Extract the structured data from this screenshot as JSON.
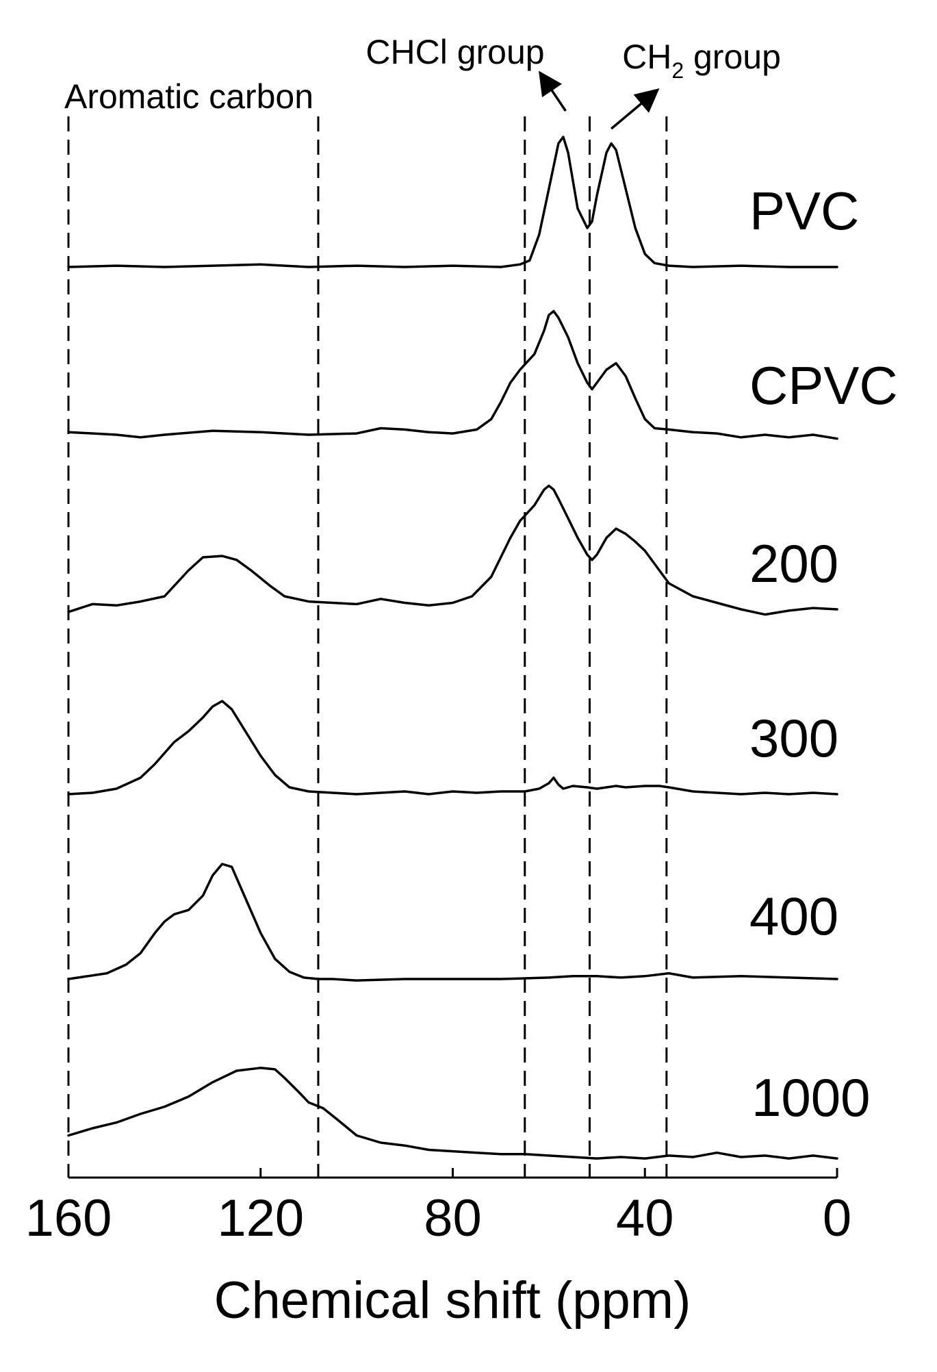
{
  "chart_data": {
    "type": "line",
    "xlabel": "Chemical shift (ppm)",
    "xlim": [
      160,
      0
    ],
    "x_reversed": true,
    "xticks": [
      160,
      120,
      80,
      40,
      0
    ],
    "grid": false,
    "legend": "none",
    "guide_lines": [
      160,
      108,
      65,
      51.5,
      35.5
    ],
    "annotations": [
      {
        "text": "Aromatic carbon",
        "x": 134
      },
      {
        "text": "CHCl group",
        "x": 58,
        "arrow_from": 56.5,
        "arrow_to": 61
      },
      {
        "text": "CH2 group",
        "main": "CH",
        "sub": "2",
        "tail": " group",
        "x": 45,
        "arrow_from": 47,
        "arrow_to": 38.5
      }
    ],
    "series": [
      {
        "name": "PVC",
        "x": [
          160,
          150,
          140,
          130,
          120,
          110,
          100,
          90,
          80,
          70,
          66,
          64,
          62,
          60,
          58,
          57,
          56,
          54,
          52,
          51,
          50,
          48,
          47,
          46,
          44,
          42,
          40,
          38,
          35,
          30,
          20,
          10,
          0
        ],
        "y": [
          0.0,
          0.01,
          0.0,
          0.01,
          0.02,
          0.0,
          0.01,
          0.0,
          0.01,
          0.0,
          0.02,
          0.05,
          0.25,
          0.6,
          0.95,
          1.0,
          0.88,
          0.45,
          0.3,
          0.35,
          0.55,
          0.88,
          0.95,
          0.9,
          0.6,
          0.3,
          0.1,
          0.03,
          0.01,
          0.0,
          0.01,
          0.0,
          0.0
        ]
      },
      {
        "name": "CPVC",
        "x": [
          160,
          150,
          145,
          140,
          130,
          120,
          110,
          100,
          95,
          90,
          85,
          80,
          75,
          72,
          70,
          68,
          66,
          63,
          61,
          60,
          59,
          58,
          56,
          54,
          52,
          51,
          50,
          48,
          46,
          44,
          42,
          40,
          38,
          35,
          30,
          25,
          20,
          15,
          10,
          5,
          0
        ],
        "y": [
          0.02,
          0.0,
          -0.02,
          0.0,
          0.03,
          0.02,
          0.0,
          0.01,
          0.05,
          0.04,
          0.02,
          0.01,
          0.04,
          0.12,
          0.25,
          0.4,
          0.5,
          0.62,
          0.8,
          0.92,
          0.95,
          0.9,
          0.75,
          0.55,
          0.4,
          0.35,
          0.4,
          0.5,
          0.55,
          0.45,
          0.28,
          0.12,
          0.05,
          0.04,
          0.02,
          0.01,
          -0.02,
          0.0,
          -0.02,
          0.0,
          -0.03
        ]
      },
      {
        "name": "200",
        "x": [
          160,
          155,
          150,
          145,
          140,
          135,
          132,
          128,
          125,
          122,
          118,
          115,
          110,
          105,
          100,
          95,
          90,
          85,
          80,
          76,
          72,
          70,
          68,
          66,
          63,
          61,
          60,
          59,
          58,
          56,
          54,
          52,
          51,
          50,
          48,
          46,
          44,
          42,
          40,
          38,
          35,
          30,
          25,
          20,
          15,
          10,
          5,
          0
        ],
        "y": [
          -0.02,
          0.04,
          0.03,
          0.06,
          0.1,
          0.3,
          0.4,
          0.41,
          0.38,
          0.3,
          0.18,
          0.1,
          0.06,
          0.05,
          0.04,
          0.08,
          0.05,
          0.03,
          0.05,
          0.1,
          0.25,
          0.4,
          0.55,
          0.68,
          0.8,
          0.92,
          0.95,
          0.92,
          0.85,
          0.7,
          0.55,
          0.42,
          0.38,
          0.42,
          0.55,
          0.62,
          0.58,
          0.52,
          0.45,
          0.35,
          0.2,
          0.1,
          0.05,
          0.0,
          -0.04,
          -0.01,
          0.01,
          0.0
        ]
      },
      {
        "name": "300",
        "x": [
          160,
          155,
          150,
          145,
          142,
          138,
          135,
          132,
          130,
          128,
          126,
          123,
          120,
          117,
          114,
          110,
          105,
          100,
          95,
          90,
          85,
          80,
          75,
          70,
          65,
          62,
          60,
          59,
          58,
          57,
          55,
          52,
          50,
          48,
          46,
          44,
          40,
          37,
          35,
          30,
          25,
          20,
          15,
          10,
          5,
          0
        ],
        "y": [
          0.0,
          0.01,
          0.04,
          0.12,
          0.22,
          0.38,
          0.46,
          0.56,
          0.64,
          0.68,
          0.62,
          0.45,
          0.28,
          0.14,
          0.05,
          0.02,
          0.01,
          0.0,
          0.01,
          0.02,
          0.0,
          0.02,
          0.01,
          0.02,
          0.02,
          0.04,
          0.08,
          0.12,
          0.07,
          0.04,
          0.06,
          0.05,
          0.04,
          0.05,
          0.06,
          0.05,
          0.06,
          0.06,
          0.05,
          0.02,
          0.01,
          0.0,
          0.01,
          0.0,
          0.01,
          0.0
        ]
      },
      {
        "name": "400",
        "x": [
          160,
          152,
          148,
          145,
          142,
          140,
          138,
          135,
          132,
          130,
          128,
          126,
          123,
          120,
          117,
          114,
          111,
          108,
          105,
          100,
          90,
          80,
          70,
          60,
          55,
          50,
          45,
          40,
          35,
          30,
          20,
          10,
          0
        ],
        "y": [
          0.0,
          0.04,
          0.1,
          0.18,
          0.32,
          0.4,
          0.45,
          0.48,
          0.58,
          0.72,
          0.8,
          0.78,
          0.55,
          0.32,
          0.14,
          0.05,
          0.01,
          0.0,
          0.0,
          -0.01,
          0.0,
          0.0,
          0.0,
          0.01,
          0.02,
          0.02,
          0.01,
          0.02,
          0.04,
          0.01,
          0.02,
          0.01,
          0.0
        ]
      },
      {
        "name": "1000",
        "x": [
          160,
          155,
          150,
          145,
          140,
          135,
          130,
          125,
          120,
          117,
          115,
          112,
          110,
          107,
          104,
          100,
          95,
          90,
          85,
          80,
          75,
          70,
          65,
          60,
          55,
          50,
          45,
          40,
          35,
          30,
          25,
          20,
          15,
          10,
          5,
          0
        ],
        "y": [
          0.15,
          0.2,
          0.24,
          0.3,
          0.35,
          0.42,
          0.52,
          0.6,
          0.62,
          0.61,
          0.55,
          0.45,
          0.38,
          0.34,
          0.26,
          0.15,
          0.1,
          0.08,
          0.05,
          0.04,
          0.03,
          0.02,
          0.02,
          0.01,
          0.0,
          -0.01,
          0.0,
          -0.01,
          0.01,
          0.0,
          0.03,
          0.0,
          0.01,
          -0.01,
          0.01,
          -0.01
        ]
      }
    ]
  }
}
